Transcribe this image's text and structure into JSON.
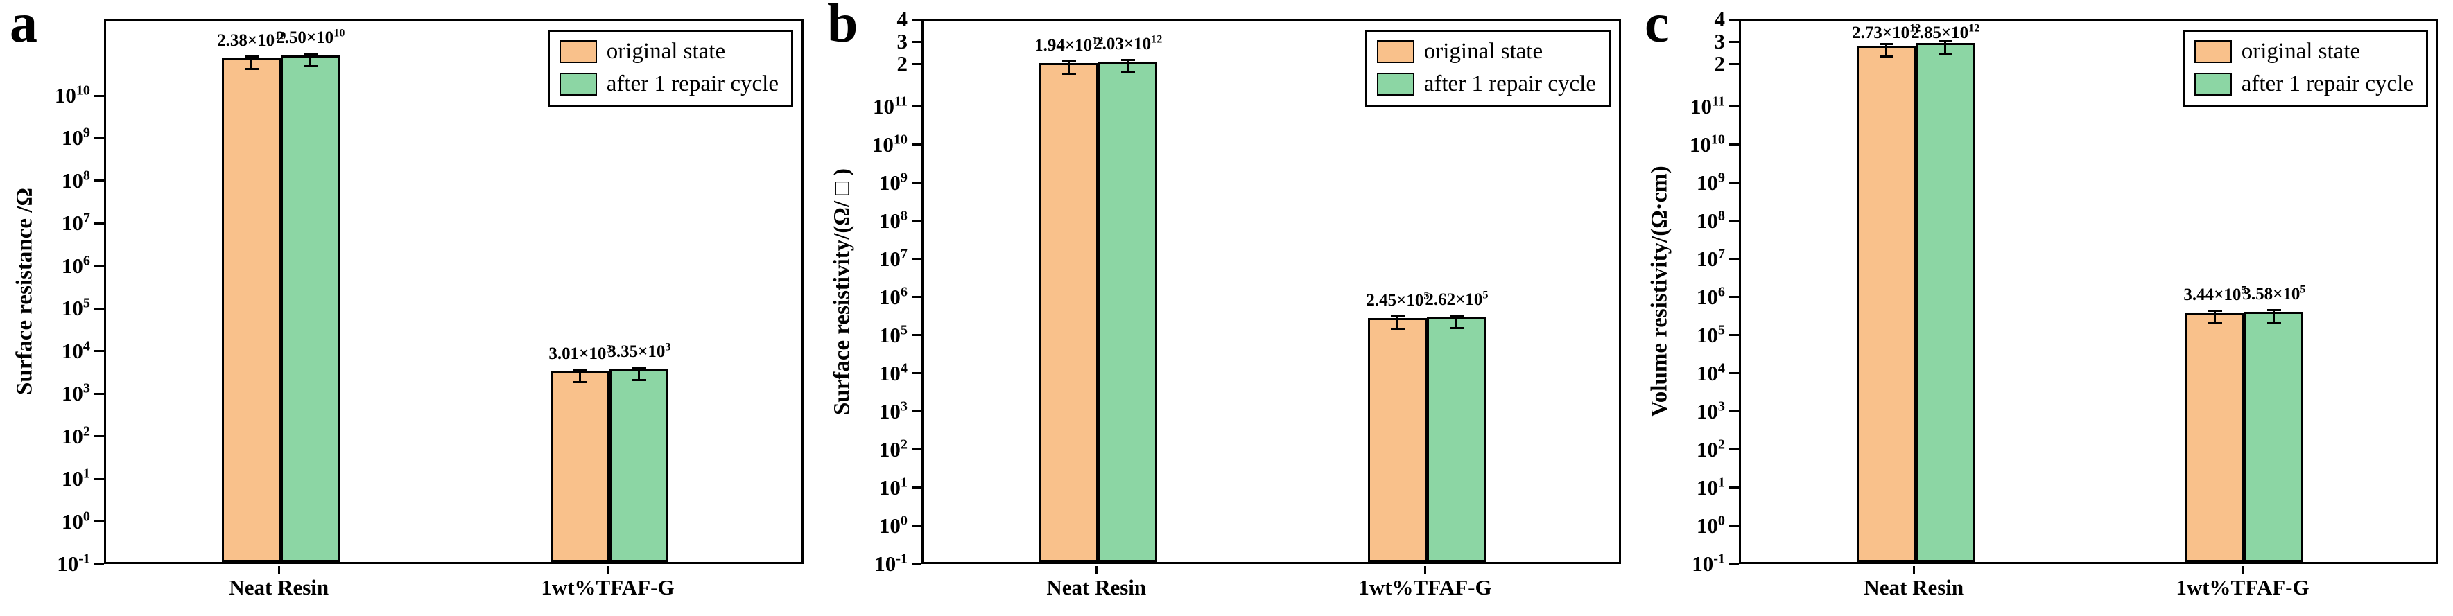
{
  "figure_label": "surface-and-volume-resistivity-comparison",
  "chart_data": [
    {
      "type": "bar",
      "panel_label": "a",
      "ylabel": "Surface resistance /Ω",
      "xlabel": "",
      "categories": [
        "Neat Resin",
        "1wt%TFAF-G"
      ],
      "series": [
        {
          "name": "original state",
          "color": "#F9C18B",
          "values": [
            23800000000.0,
            3010.0
          ],
          "labels": [
            "2.38×10^10",
            "3.01×10^3"
          ]
        },
        {
          "name": "after 1 repair cycle",
          "color": "#8CD6A4",
          "values": [
            25000000000.0,
            3350.0
          ],
          "labels": [
            "2.50×10^10",
            "3.35×10^3"
          ]
        }
      ],
      "yticks": [
        {
          "label": "10^10",
          "value": 10000000000.0
        },
        {
          "label": "10^9",
          "value": 1000000000.0
        },
        {
          "label": "10^8",
          "value": 100000000.0
        },
        {
          "label": "10^7",
          "value": 10000000.0
        },
        {
          "label": "10^6",
          "value": 1000000.0
        },
        {
          "label": "10^5",
          "value": 100000.0
        },
        {
          "label": "10^4",
          "value": 10000.0
        },
        {
          "label": "10^3",
          "value": 1000.0
        },
        {
          "label": "10^2",
          "value": 100.0
        },
        {
          "label": "10^1",
          "value": 10.0
        },
        {
          "label": "10^0",
          "value": 1
        },
        {
          "label": "10^-1",
          "value": 0.1
        }
      ],
      "scale": {
        "log_min_exp": -1,
        "log_max_exp": 10,
        "log_fraction": 0.86,
        "max_value": 40000000000.0
      },
      "ylim": [
        0.1,
        40000000000.0
      ],
      "grid": false,
      "legend_position": "top-right"
    },
    {
      "type": "bar",
      "panel_label": "b",
      "ylabel": "Surface resistivity/(Ω/□)",
      "xlabel": "",
      "categories": [
        "Neat Resin",
        "1wt%TFAF-G"
      ],
      "series": [
        {
          "name": "original state",
          "color": "#F9C18B",
          "values": [
            1940000000000.0,
            245000.0
          ],
          "labels": [
            "1.94×10^12",
            "2.45×10^5"
          ]
        },
        {
          "name": "after 1 repair cycle",
          "color": "#8CD6A4",
          "values": [
            2030000000000.0,
            262000.0
          ],
          "labels": [
            "2.03×10^12",
            "2.62×10^5"
          ]
        }
      ],
      "yticks": [
        {
          "label": "4",
          "value": 4000000000000.0
        },
        {
          "label": "3",
          "value": 3000000000000.0
        },
        {
          "label": "2",
          "value": 2000000000000.0
        },
        {
          "label": "10^11",
          "value": 100000000000.0
        },
        {
          "label": "10^10",
          "value": 10000000000.0
        },
        {
          "label": "10^9",
          "value": 1000000000.0
        },
        {
          "label": "10^8",
          "value": 100000000.0
        },
        {
          "label": "10^7",
          "value": 10000000.0
        },
        {
          "label": "10^6",
          "value": 1000000.0
        },
        {
          "label": "10^5",
          "value": 100000.0
        },
        {
          "label": "10^4",
          "value": 10000.0
        },
        {
          "label": "10^3",
          "value": 1000.0
        },
        {
          "label": "10^2",
          "value": 100.0
        },
        {
          "label": "10^1",
          "value": 10.0
        },
        {
          "label": "10^0",
          "value": 1
        },
        {
          "label": "10^-1",
          "value": 0.1
        }
      ],
      "scale": {
        "log_min_exp": -1,
        "log_max_exp": 11,
        "log_fraction": 0.84,
        "max_value": 4000000000000.0
      },
      "ylim": [
        0.1,
        4000000000000.0
      ],
      "grid": false,
      "legend_position": "top-right"
    },
    {
      "type": "bar",
      "panel_label": "c",
      "ylabel": "Volume resistivity/(Ω·cm)",
      "xlabel": "",
      "categories": [
        "Neat Resin",
        "1wt%TFAF-G"
      ],
      "series": [
        {
          "name": "original state",
          "color": "#F9C18B",
          "values": [
            2730000000000.0,
            344000.0
          ],
          "labels": [
            "2.73×10^12",
            "3.44×10^5"
          ]
        },
        {
          "name": "after 1 repair cycle",
          "color": "#8CD6A4",
          "values": [
            2850000000000.0,
            358000.0
          ],
          "labels": [
            "2.85×10^12",
            "3.58×10^5"
          ]
        }
      ],
      "yticks": [
        {
          "label": "4",
          "value": 4000000000000.0
        },
        {
          "label": "3",
          "value": 3000000000000.0
        },
        {
          "label": "2",
          "value": 2000000000000.0
        },
        {
          "label": "10^11",
          "value": 100000000000.0
        },
        {
          "label": "10^10",
          "value": 10000000000.0
        },
        {
          "label": "10^9",
          "value": 1000000000.0
        },
        {
          "label": "10^8",
          "value": 100000000.0
        },
        {
          "label": "10^7",
          "value": 10000000.0
        },
        {
          "label": "10^6",
          "value": 1000000.0
        },
        {
          "label": "10^5",
          "value": 100000.0
        },
        {
          "label": "10^4",
          "value": 10000.0
        },
        {
          "label": "10^3",
          "value": 1000.0
        },
        {
          "label": "10^2",
          "value": 100.0
        },
        {
          "label": "10^1",
          "value": 10.0
        },
        {
          "label": "10^0",
          "value": 1
        },
        {
          "label": "10^-1",
          "value": 0.1
        }
      ],
      "scale": {
        "log_min_exp": -1,
        "log_max_exp": 11,
        "log_fraction": 0.84,
        "max_value": 4000000000000.0
      },
      "ylim": [
        0.1,
        4000000000000.0
      ],
      "grid": false,
      "legend_position": "top-right"
    }
  ]
}
